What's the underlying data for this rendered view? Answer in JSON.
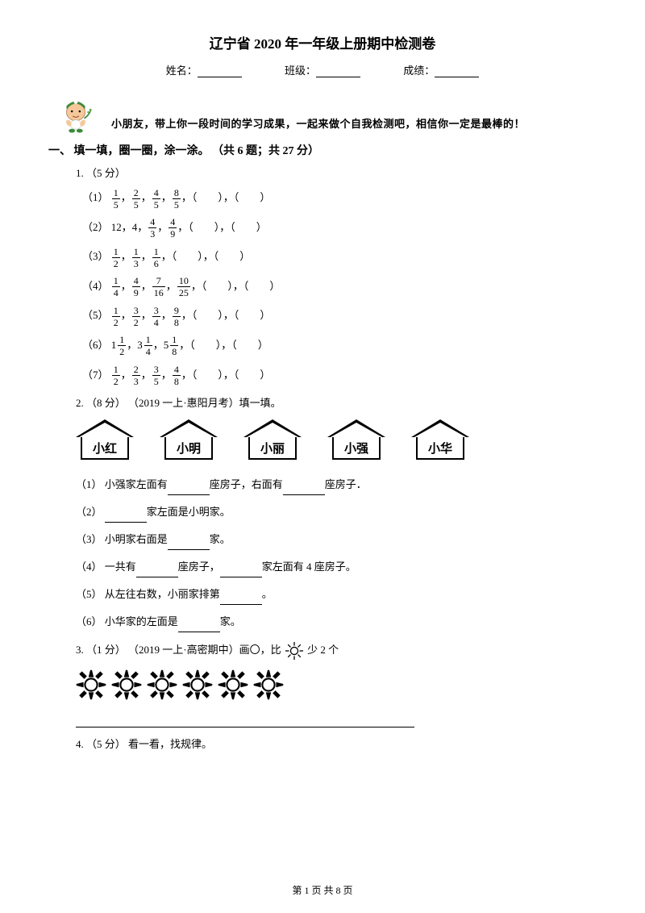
{
  "title": "辽宁省 2020 年一年级上册期中检测卷",
  "info": {
    "name": "姓名：",
    "class": "班级：",
    "score": "成绩："
  },
  "encourage": "小朋友，带上你一段时间的学习成果，一起来做个自我检测吧，相信你一定是最棒的！",
  "section1": "一、 填一填，圈一圈，涂一涂。 （共 6 题；共 27 分）",
  "q1": {
    "head": "1.  （5 分）",
    "rows": [
      {
        "label": "（1）",
        "items": [
          {
            "n": "1",
            "d": "5"
          },
          {
            "n": "2",
            "d": "5"
          },
          {
            "n": "4",
            "d": "5"
          },
          {
            "n": "8",
            "d": "5"
          }
        ]
      },
      {
        "label": "（2）",
        "lead": "12，4，",
        "items": [
          {
            "n": "4",
            "d": "3"
          },
          {
            "n": "4",
            "d": "9"
          }
        ]
      },
      {
        "label": "（3）",
        "items": [
          {
            "n": "1",
            "d": "2"
          },
          {
            "n": "1",
            "d": "3"
          },
          {
            "n": "1",
            "d": "6"
          }
        ]
      },
      {
        "label": "（4）",
        "items": [
          {
            "n": "1",
            "d": "4"
          },
          {
            "n": "4",
            "d": "9"
          },
          {
            "n": "7",
            "d": "16"
          },
          {
            "n": "10",
            "d": "25"
          }
        ]
      },
      {
        "label": "（5）",
        "items": [
          {
            "n": "1",
            "d": "2"
          },
          {
            "n": "3",
            "d": "2"
          },
          {
            "n": "3",
            "d": "4"
          },
          {
            "n": "9",
            "d": "8"
          }
        ]
      },
      {
        "label": "（6）",
        "mixed": [
          {
            "w": "1",
            "n": "1",
            "d": "2"
          },
          {
            "w": "3",
            "n": "1",
            "d": "4"
          },
          {
            "w": "5",
            "n": "1",
            "d": "8"
          }
        ]
      },
      {
        "label": "（7）",
        "items": [
          {
            "n": "1",
            "d": "2"
          },
          {
            "n": "2",
            "d": "3"
          },
          {
            "n": "3",
            "d": "5"
          },
          {
            "n": "4",
            "d": "8"
          }
        ]
      }
    ],
    "blank": "，（　　），（　　）",
    "blank3": "，（　　），（　　）"
  },
  "q2": {
    "head": "2.  （8 分） （2019 一上·惠阳月考）填一填。",
    "houses": [
      "小红",
      "小明",
      "小丽",
      "小强",
      "小华"
    ],
    "subs": [
      "（1） 小强家左面有________座房子，右面有________座房子．",
      "（2） ________家左面是小明家。",
      "（3） 小明家右面是________家。",
      "（4） 一共有________座房子，________家左面有 4 座房子。",
      "（5） 从左往右数，小丽家排第________。",
      "（6） 小华家的左面是________家。"
    ]
  },
  "q3": {
    "head_a": "3.  （1 分） （2019 一上·高密期中）画〇，比",
    "head_b": "少 2 个",
    "sun_count": 6
  },
  "q4": {
    "head": "4.  （5 分） 看一看，找规律。"
  },
  "footer": "第 1 页 共 8 页",
  "colors": {
    "skin": "#f5c89a",
    "hat": "#3a8a3a",
    "white": "#ffffff"
  }
}
